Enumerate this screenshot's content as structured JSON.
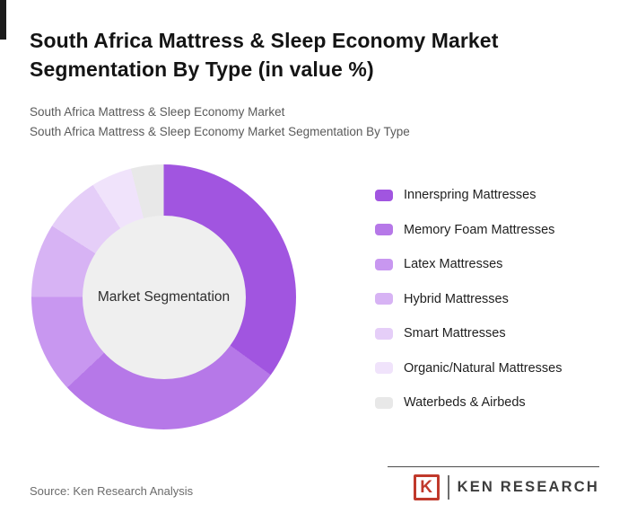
{
  "page": {
    "title": "South Africa Mattress & Sleep Economy Market Segmentation By Type (in value %)",
    "subtitle_line1": "South Africa Mattress & Sleep Economy Market",
    "subtitle_line2": "South Africa Mattress & Sleep Economy Market Segmentation By Type"
  },
  "chart_data": {
    "type": "pie",
    "variant": "donut",
    "title": "South Africa Mattress & Sleep Economy Market Segmentation By Type (in value %)",
    "center_label": "Market Segmentation",
    "categories": [
      "Innerspring Mattresses",
      "Memory Foam Mattresses",
      "Latex Mattresses",
      "Hybrid Mattresses",
      "Smart Mattresses",
      "Organic/Natural Mattresses",
      "Waterbeds & Airbeds"
    ],
    "values": [
      35,
      28,
      12,
      9,
      7,
      5,
      4
    ],
    "unit": "percent (estimated from arc angles; no numeric labels shown)",
    "colors": [
      "#a155e0",
      "#b678e8",
      "#c897f0",
      "#d7b3f4",
      "#e5cef8",
      "#f0e3fb",
      "#e8e8e8"
    ],
    "start_angle_deg": 0,
    "direction": "clockwise",
    "legend_position": "right",
    "center_circle_color": "#efefef"
  },
  "footer": {
    "source": "Source: Ken Research Analysis",
    "logo": {
      "letter": "K",
      "brand": "KEN RESEARCH",
      "accent_color": "#c0392b"
    }
  }
}
